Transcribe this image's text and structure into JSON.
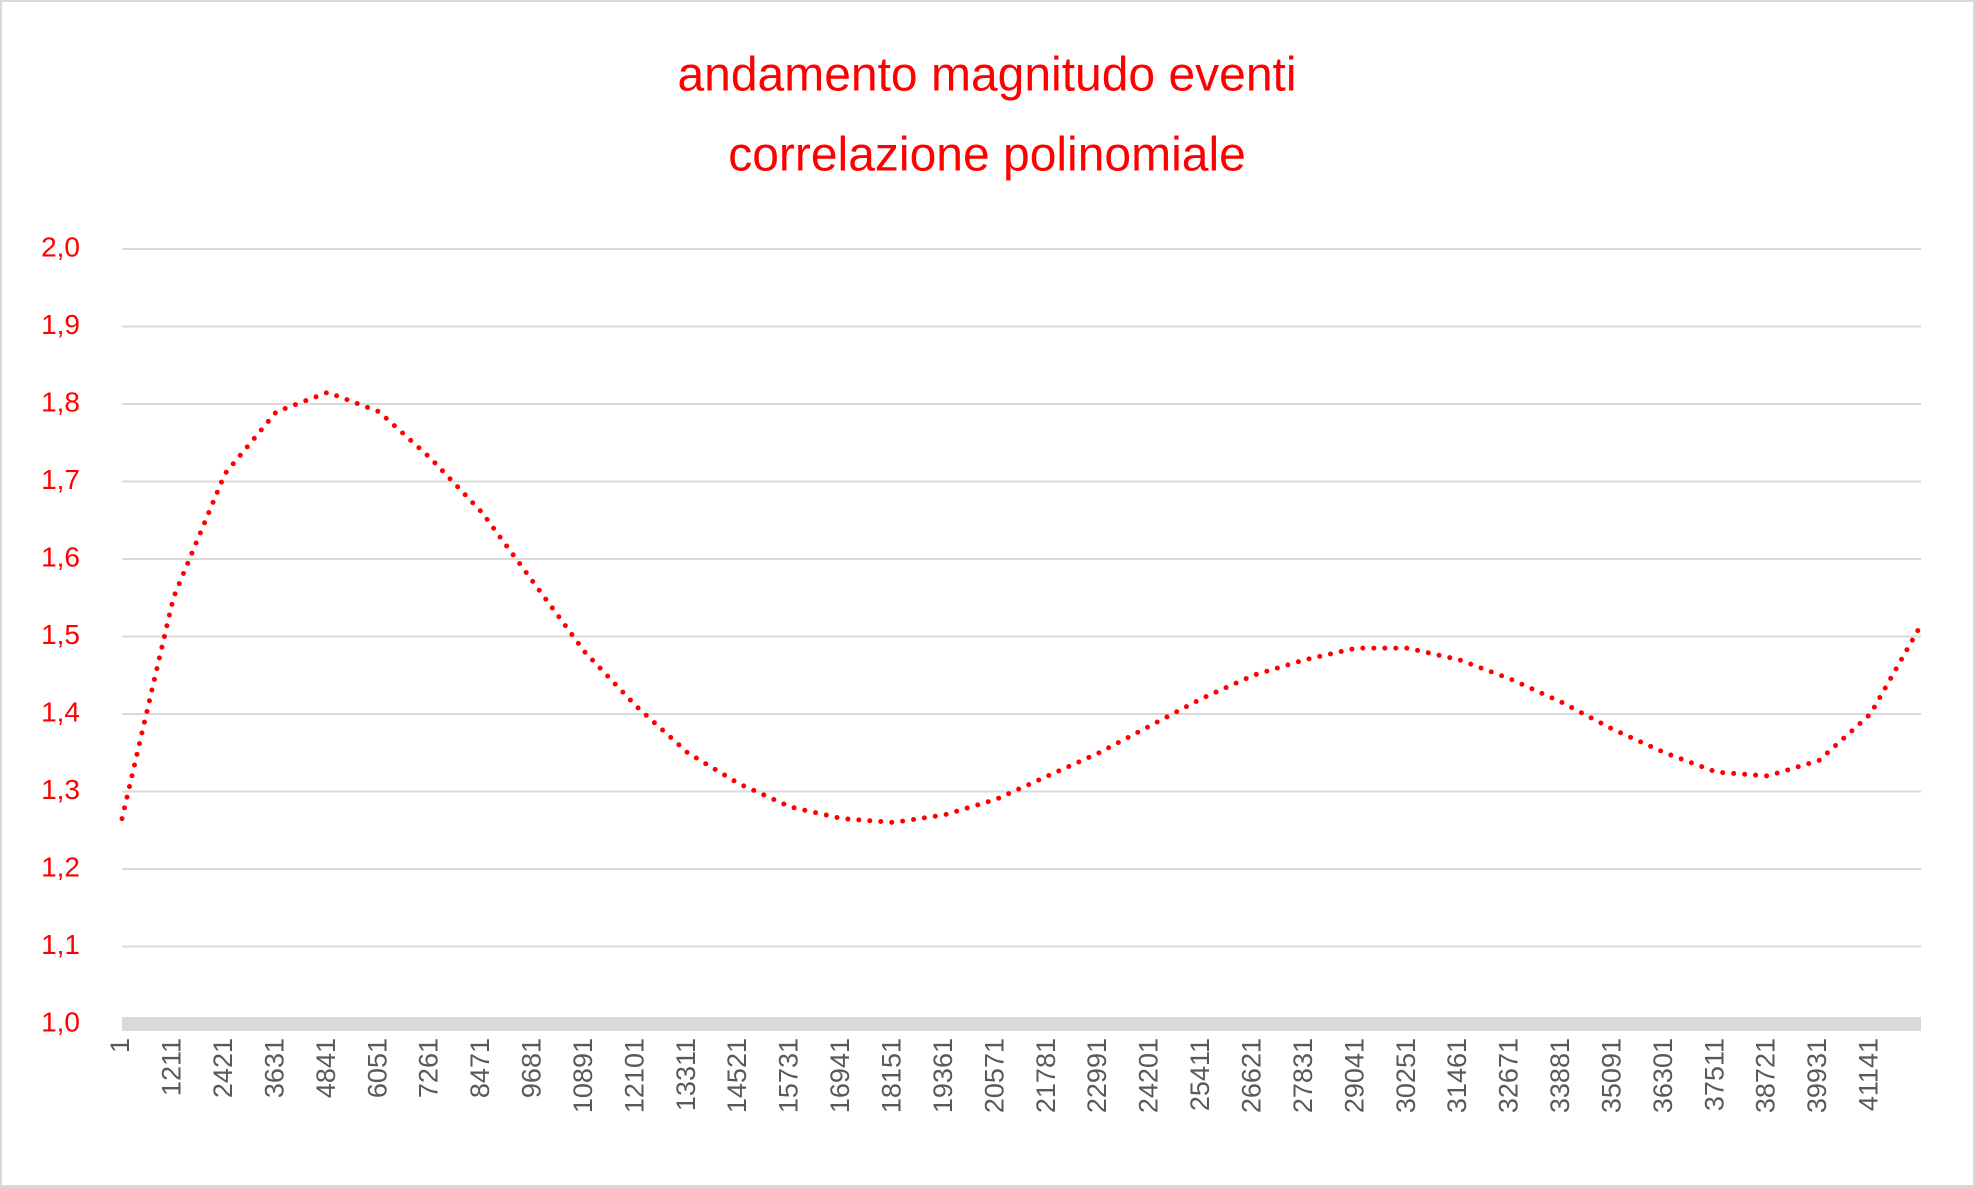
{
  "chart_data": {
    "type": "line",
    "title": [
      "andamento magnitudo eventi",
      "correlazione polinomiale"
    ],
    "x": [
      1,
      1211,
      2421,
      3631,
      4841,
      6051,
      7261,
      8471,
      9681,
      10891,
      12101,
      13311,
      14521,
      15731,
      16941,
      18151,
      19361,
      20571,
      21781,
      22991,
      24201,
      25411,
      26621,
      27831,
      29041,
      30251,
      31461,
      32671,
      33881,
      35091,
      36301,
      37511,
      38721,
      39931,
      41141,
      42330
    ],
    "series": [
      {
        "color": "#ff0000",
        "values": [
          1.265,
          1.55,
          1.71,
          1.79,
          1.815,
          1.79,
          1.73,
          1.66,
          1.57,
          1.48,
          1.41,
          1.35,
          1.31,
          1.28,
          1.265,
          1.26,
          1.27,
          1.29,
          1.32,
          1.35,
          1.385,
          1.42,
          1.45,
          1.47,
          1.485,
          1.485,
          1.47,
          1.445,
          1.415,
          1.38,
          1.35,
          1.325,
          1.32,
          1.34,
          1.4,
          1.515
        ]
      }
    ],
    "xlim": [
      1,
      42330
    ],
    "xticks": [
      1,
      1211,
      2421,
      3631,
      4841,
      6051,
      7261,
      8471,
      9681,
      10891,
      12101,
      13311,
      14521,
      15731,
      16941,
      18151,
      19361,
      20571,
      21781,
      22991,
      24201,
      25411,
      26621,
      27831,
      29041,
      30251,
      31461,
      32671,
      33881,
      35091,
      36301,
      37511,
      38721,
      39931,
      41141
    ],
    "ylim": [
      1.0,
      2.0
    ],
    "yticks": [
      {
        "value": 1.0,
        "label": "1,0"
      },
      {
        "value": 1.1,
        "label": "1,1"
      },
      {
        "value": 1.2,
        "label": "1,2"
      },
      {
        "value": 1.3,
        "label": "1,3"
      },
      {
        "value": 1.4,
        "label": "1,4"
      },
      {
        "value": 1.5,
        "label": "1,5"
      },
      {
        "value": 1.6,
        "label": "1,6"
      },
      {
        "value": 1.7,
        "label": "1,7"
      },
      {
        "value": 1.8,
        "label": "1,8"
      },
      {
        "value": 1.9,
        "label": "1,9"
      },
      {
        "value": 2.0,
        "label": "2,0"
      }
    ],
    "grid": true
  }
}
